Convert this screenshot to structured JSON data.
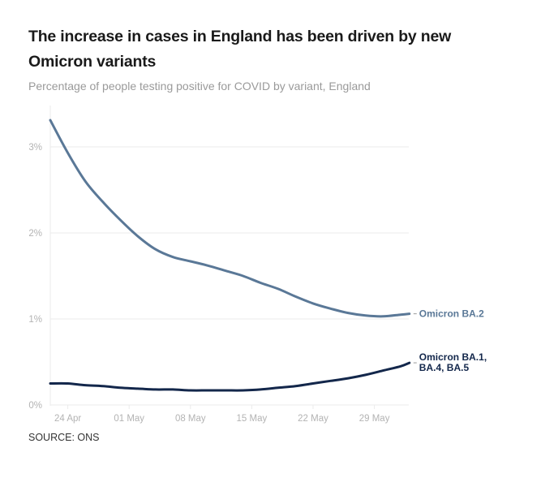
{
  "header": {
    "title": "The increase in cases in England has been driven by new Omicron variants",
    "subtitle": "Percentage of people testing positive for COVID by variant, England"
  },
  "footer": {
    "source": "SOURCE: ONS"
  },
  "colors": {
    "ba2": "#5a7897",
    "ba145": "#13274b",
    "grid": "#ebebeb",
    "axis_text": "#b3b3b3"
  },
  "chart_data": {
    "type": "line",
    "title": "The increase in cases in England has been driven by new Omicron variants",
    "subtitle": "Percentage of people testing positive for COVID by variant, England",
    "xlabel": "",
    "ylabel": "",
    "ylim": [
      0,
      3.3
    ],
    "yticks": [
      0,
      1,
      2,
      3
    ],
    "ytick_labels": [
      "0%",
      "1%",
      "2%",
      "3%"
    ],
    "x_start_date": "22 Apr",
    "x_day_range": [
      0,
      41
    ],
    "xticks": [
      2,
      9,
      16,
      23,
      30,
      37
    ],
    "xtick_labels": [
      "24 Apr",
      "01 May",
      "08 May",
      "15 May",
      "22 May",
      "29 May"
    ],
    "grid": true,
    "legend": "direct-labels-right",
    "x": [
      0,
      2,
      4,
      6,
      8,
      10,
      12,
      14,
      16,
      18,
      20,
      22,
      24,
      26,
      28,
      30,
      32,
      34,
      36,
      38,
      40,
      41
    ],
    "series": [
      {
        "name": "Omicron BA.2",
        "label_lines": [
          "Omicron BA.2"
        ],
        "color": "#5a7897",
        "values": [
          3.31,
          2.93,
          2.6,
          2.36,
          2.15,
          1.96,
          1.81,
          1.72,
          1.67,
          1.62,
          1.56,
          1.5,
          1.42,
          1.35,
          1.26,
          1.18,
          1.12,
          1.07,
          1.04,
          1.03,
          1.05,
          1.06
        ]
      },
      {
        "name": "Omicron BA.1, BA.4, BA.5",
        "label_lines": [
          "Omicron BA.1,",
          "BA.4, BA.5"
        ],
        "color": "#13274b",
        "values": [
          0.25,
          0.25,
          0.23,
          0.22,
          0.2,
          0.19,
          0.18,
          0.18,
          0.17,
          0.17,
          0.17,
          0.17,
          0.18,
          0.2,
          0.22,
          0.25,
          0.28,
          0.31,
          0.35,
          0.4,
          0.45,
          0.49
        ]
      }
    ]
  }
}
